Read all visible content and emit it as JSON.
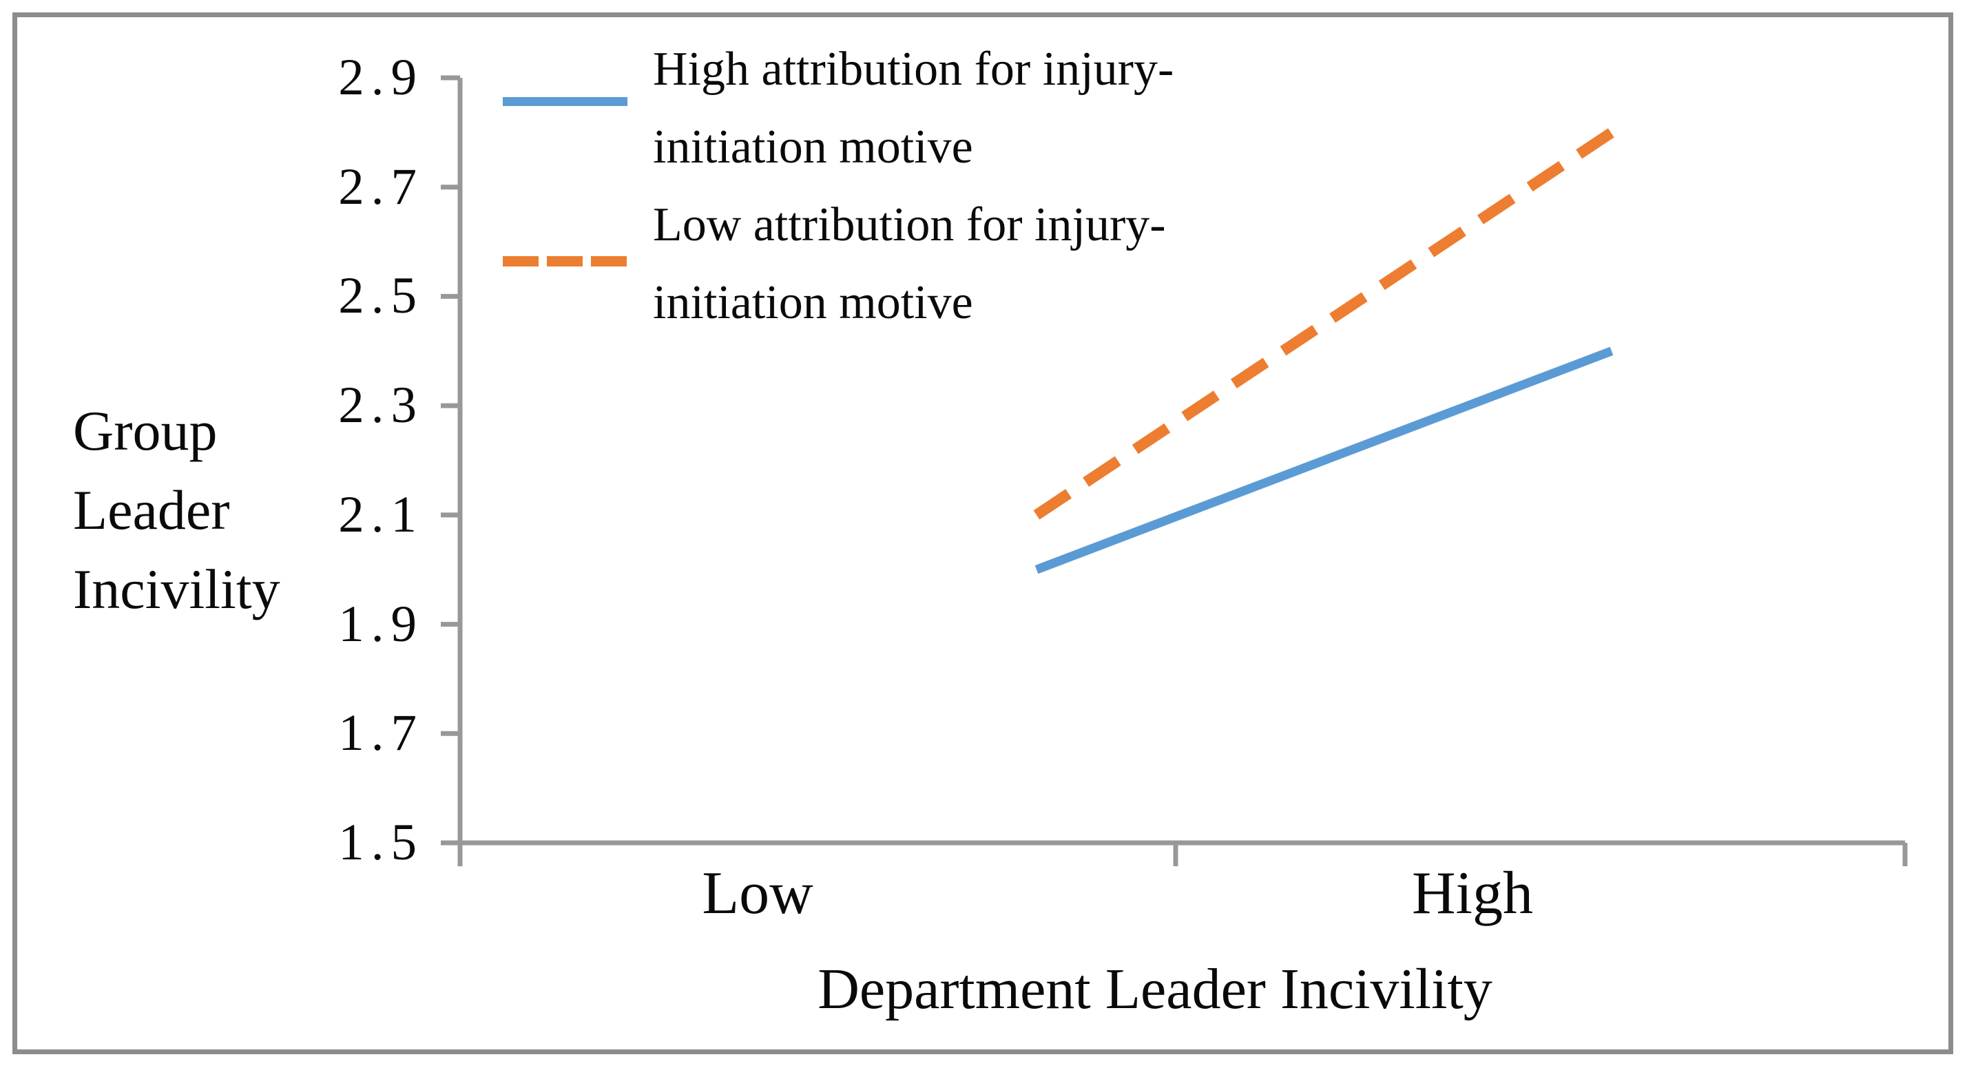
{
  "chart_data": {
    "type": "line",
    "categories": [
      "Low",
      "High"
    ],
    "series": [
      {
        "name": "High attribution for injury-initiation motive",
        "values": [
          2.0,
          2.4
        ],
        "color": "#5B9BD5",
        "style": "solid"
      },
      {
        "name": "Low attribution for injury-initiation motive",
        "values": [
          2.1,
          2.8
        ],
        "color": "#ED7D31",
        "style": "dashed"
      }
    ],
    "title": "",
    "xlabel": "Department Leader Incivility",
    "ylabel": "Group Leader Incivility",
    "ylim": [
      1.5,
      2.9
    ],
    "yticks": [
      2.9,
      2.7,
      2.5,
      2.3,
      2.1,
      1.9,
      1.7,
      1.5
    ],
    "ytick_labels": [
      "2.9",
      "2.7",
      "2.5",
      "2.3",
      "2.1",
      "1.9",
      "1.7",
      "1.5"
    ],
    "grid": false,
    "legend_position": "top-left-inside"
  },
  "axes": {
    "y_label_text": "Group\nLeader\nIncivility",
    "x_title": "Department Leader Incivility",
    "x_categories": {
      "low": "Low",
      "high": "High"
    }
  },
  "legend": {
    "items": [
      {
        "label": "High attribution for injury-\ninitiation motive"
      },
      {
        "label": "Low attribution for injury-\ninitiation motive"
      }
    ]
  },
  "colors": {
    "axis": "#989898",
    "frame": "#8c8c8c",
    "series_blue": "#5B9BD5",
    "series_orange": "#ED7D31",
    "text": "#0a0a0a",
    "background": "#ffffff"
  }
}
